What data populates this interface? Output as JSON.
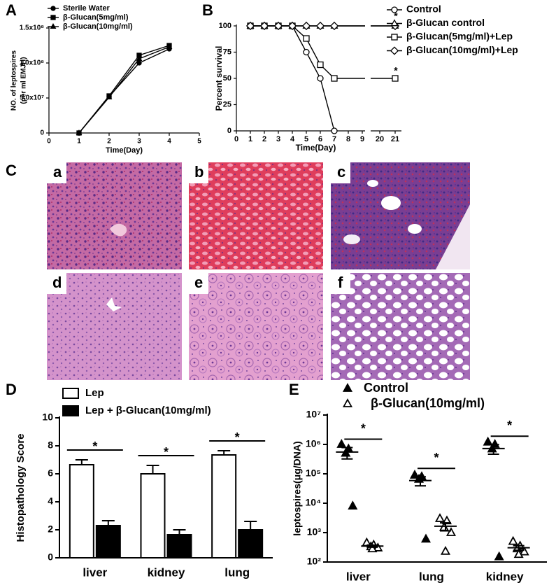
{
  "chart_data": [
    {
      "type": "line",
      "panel_label": "A",
      "xlabel": "Time(Day)",
      "ylabel": [
        "NO. of leptospires",
        "(per ml EMJH)"
      ],
      "x": [
        1,
        2,
        3,
        4
      ],
      "series": [
        {
          "name": "Sterile Water",
          "color": "#000000",
          "marker": "circle",
          "filled": true,
          "values": [
            0,
            52000000,
            100000000,
            120000000
          ]
        },
        {
          "name": "β-Glucan(5mg/ml)",
          "color": "#000000",
          "marker": "square",
          "filled": true,
          "values": [
            0,
            53000000,
            111000000,
            125000000
          ]
        },
        {
          "name": "β-Glucan(10mg/ml)",
          "color": "#000000",
          "marker": "triangle",
          "filled": true,
          "values": [
            0,
            51000000,
            106000000,
            123000000
          ]
        }
      ],
      "xlim": [
        0,
        5
      ],
      "xticks": [
        0,
        1,
        2,
        3,
        4,
        5
      ],
      "ylim": [
        0,
        150000000
      ],
      "yticks": [
        0,
        {
          "value": 50000000,
          "label": "5.0x10⁷"
        },
        {
          "value": 100000000,
          "label": "1.0x10⁸"
        },
        {
          "value": 150000000,
          "label": "1.5x10⁸"
        }
      ],
      "legend": "top-left"
    },
    {
      "type": "line",
      "panel_label": "B",
      "xlabel": "Time(Day)",
      "ylabel": "Percent survival",
      "x": [
        1,
        2,
        3,
        4,
        5,
        6,
        7,
        21
      ],
      "series": [
        {
          "name": "Control",
          "color": "#000000",
          "marker": "circle",
          "filled": false,
          "values": [
            100,
            100,
            100,
            100,
            75,
            50,
            0,
            null
          ]
        },
        {
          "name": "β-Glucan control",
          "color": "#000000",
          "marker": "triangle",
          "filled": false,
          "values": [
            100,
            100,
            100,
            100,
            100,
            100,
            100,
            100
          ]
        },
        {
          "name": "β-Glucan(5mg/ml)+Lep",
          "color": "#000000",
          "marker": "square",
          "filled": false,
          "values": [
            100,
            100,
            100,
            100,
            88,
            63,
            50,
            50
          ]
        },
        {
          "name": "β-Glucan(10mg/ml)+Lep",
          "color": "#000000",
          "marker": "diamond",
          "filled": false,
          "values": [
            100,
            100,
            100,
            100,
            100,
            100,
            100,
            100
          ]
        }
      ],
      "xlim": [
        0,
        21
      ],
      "xticks": [
        0,
        1,
        2,
        3,
        4,
        5,
        6,
        7,
        8,
        9,
        20,
        21
      ],
      "ylim": [
        0,
        100
      ],
      "yticks": [
        0,
        25,
        50,
        75,
        100
      ],
      "annotations": [
        "*",
        "*"
      ],
      "legend": "top-right"
    },
    {
      "type": "bar",
      "panel_label": "D",
      "ylabel": "Histopathology Score",
      "categories": [
        "liver",
        "kidney",
        "lung"
      ],
      "series": [
        {
          "name": "Lep",
          "color": "#ffffff",
          "values": [
            6.65,
            6.0,
            7.35
          ],
          "errors": [
            0.35,
            0.6,
            0.3
          ]
        },
        {
          "name": "Lep + β-Glucan(10mg/ml)",
          "color": "#000000",
          "values": [
            2.3,
            1.65,
            2.0
          ],
          "errors": [
            0.35,
            0.35,
            0.6
          ]
        }
      ],
      "ylim": [
        0,
        10
      ],
      "yticks": [
        0,
        2,
        4,
        6,
        8,
        10
      ],
      "annotations": [
        "*",
        "*",
        "*"
      ],
      "legend": "top-left"
    },
    {
      "type": "scatter",
      "panel_label": "E",
      "ylabel": "leptospires(μg/DNA)",
      "log_scale": true,
      "categories": [
        "liver",
        "lung",
        "kidney"
      ],
      "series": [
        {
          "name": "Control",
          "color": "#000000",
          "marker": "triangle",
          "filled": true,
          "values": [
            [
              1000000,
              700000,
              500000,
              8000
            ],
            [
              90000,
              80000,
              65000,
              600
            ],
            [
              1200000,
              1000000,
              700000,
              150
            ]
          ],
          "means": [
            550000,
            59000,
            725000
          ],
          "errors": [
            230000,
            20000,
            260000
          ]
        },
        {
          "name": "β-Glucan(10mg/ml)",
          "color": "#000000",
          "marker": "triangle",
          "filled": false,
          "values": [
            [
              450,
              380,
              330,
              300,
              280
            ],
            [
              3000,
              2500,
              1500,
              1000,
              230
            ],
            [
              500,
              350,
              280,
              220,
              180
            ]
          ],
          "means": [
            348,
            1646,
            306
          ],
          "errors": [
            30,
            500,
            55
          ]
        }
      ],
      "ylim": [
        100,
        10000000
      ],
      "yticks": [
        {
          "value": 100,
          "label": "10²"
        },
        {
          "value": 1000,
          "label": "10³"
        },
        {
          "value": 10000,
          "label": "10⁴"
        },
        {
          "value": 100000,
          "label": "10⁵"
        },
        {
          "value": 1000000,
          "label": "10⁶"
        },
        {
          "value": 10000000,
          "label": "10⁷"
        }
      ],
      "annotations": [
        "*",
        "*",
        "*"
      ],
      "legend": "top"
    }
  ],
  "micrographs": {
    "panel_label": "C",
    "labels": [
      "a",
      "b",
      "c",
      "d",
      "e",
      "f"
    ]
  }
}
